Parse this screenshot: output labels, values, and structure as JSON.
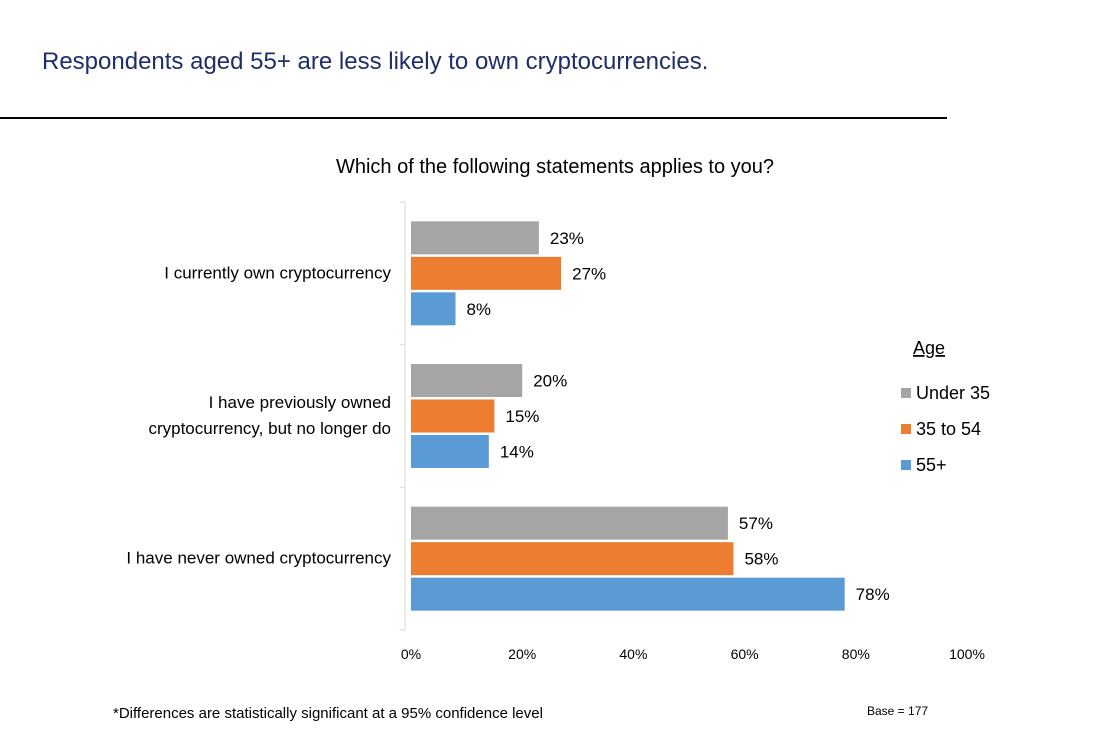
{
  "headline": "Respondents aged 55+ are less likely to own cryptocurrencies.",
  "footnote": "*Differences are statistically significant at a 95% confidence level",
  "base": "Base = 177",
  "chart_data": {
    "type": "bar",
    "orientation": "horizontal",
    "title": "Which of the following statements applies to you?",
    "categories": [
      [
        "I currently own cryptocurrency"
      ],
      [
        "I have previously owned",
        "cryptocurrency, but no longer do"
      ],
      [
        "I have never owned cryptocurrency"
      ]
    ],
    "series": [
      {
        "name": "Under 35",
        "color": "#a5a5a5",
        "values": [
          23,
          20,
          57
        ],
        "labels": [
          "23%",
          "20%",
          "57%"
        ]
      },
      {
        "name": "35 to 54",
        "color": "#ed7d31",
        "values": [
          27,
          15,
          58
        ],
        "labels": [
          "27%",
          "15%",
          "58%"
        ]
      },
      {
        "name": "55+",
        "color": "#5b9bd5",
        "values": [
          8,
          14,
          78
        ],
        "labels": [
          "8%",
          "14%",
          "78%"
        ]
      }
    ],
    "xlim": [
      0,
      100
    ],
    "xticks": [
      "0%",
      "20%",
      "40%",
      "60%",
      "80%",
      "100%"
    ],
    "legend": {
      "title": "Age",
      "position": "right"
    },
    "grid": false
  }
}
